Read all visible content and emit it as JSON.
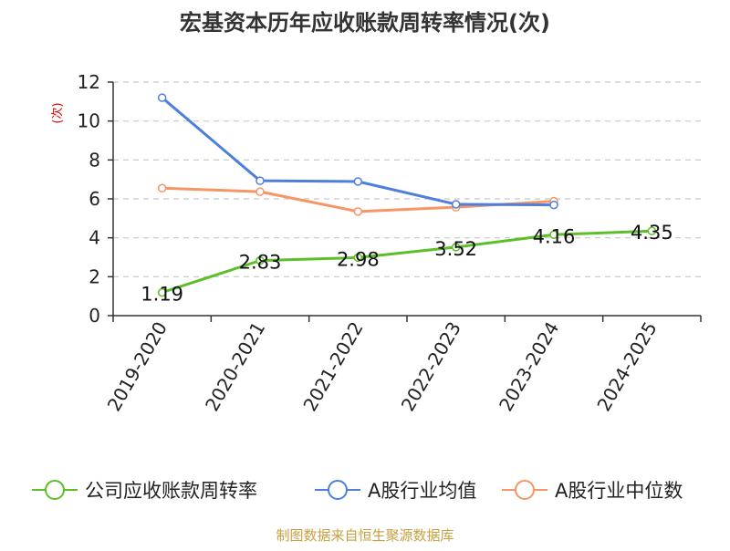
{
  "chart_data": {
    "type": "line",
    "title": "宏基资本历年应收账款周转率情况(次)",
    "ylabel": "(次)",
    "ylim": [
      0,
      12
    ],
    "yticks": [
      0,
      2,
      4,
      6,
      8,
      10,
      12
    ],
    "grid": true,
    "legend_position": "bottom",
    "categories": [
      "2019-2020",
      "2020-2021",
      "2021-2022",
      "2022-2023",
      "2023-2024",
      "2024-2025"
    ],
    "series": [
      {
        "name": "公司应收账款周转率",
        "color": "#5cbf2a",
        "values": [
          1.19,
          2.83,
          2.98,
          3.52,
          4.16,
          4.35
        ],
        "show_labels": true
      },
      {
        "name": "A股行业均值",
        "color": "#4e7fdd",
        "values": [
          11.2,
          6.93,
          6.89,
          5.72,
          5.69,
          null
        ],
        "show_labels": false
      },
      {
        "name": "A股行业中位数",
        "color": "#f59664",
        "values": [
          6.55,
          6.37,
          5.35,
          5.57,
          5.88,
          null
        ],
        "show_labels": false
      }
    ]
  },
  "footer": {
    "source": "制图数据来自恒生聚源数据库"
  }
}
